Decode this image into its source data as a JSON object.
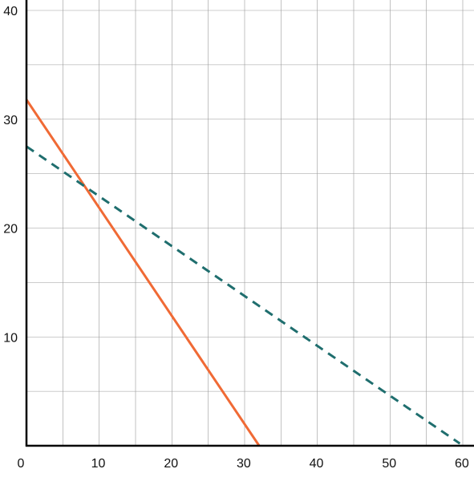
{
  "chart_data": {
    "type": "line",
    "title": "",
    "xlabel": "",
    "ylabel": "",
    "xlim": [
      0,
      60
    ],
    "ylim": [
      0,
      40
    ],
    "grid": true,
    "x_minor_grid_step": 5,
    "y_minor_grid_step": 5,
    "x_tick_labels": [
      "0",
      "10",
      "20",
      "30",
      "40",
      "50",
      "60"
    ],
    "y_tick_labels": [
      "10",
      "20",
      "30",
      "40"
    ],
    "x_ticks": [
      0,
      10,
      20,
      30,
      40,
      50,
      60
    ],
    "y_ticks": [
      10,
      20,
      30,
      40
    ],
    "series": [
      {
        "color": "#f06a35",
        "style": "solid",
        "x": [
          0,
          32
        ],
        "y": [
          31.8,
          0
        ]
      },
      {
        "color": "#1f6e6e",
        "style": "dashed",
        "x": [
          0,
          59.6
        ],
        "y": [
          27.5,
          0.2
        ]
      }
    ]
  }
}
